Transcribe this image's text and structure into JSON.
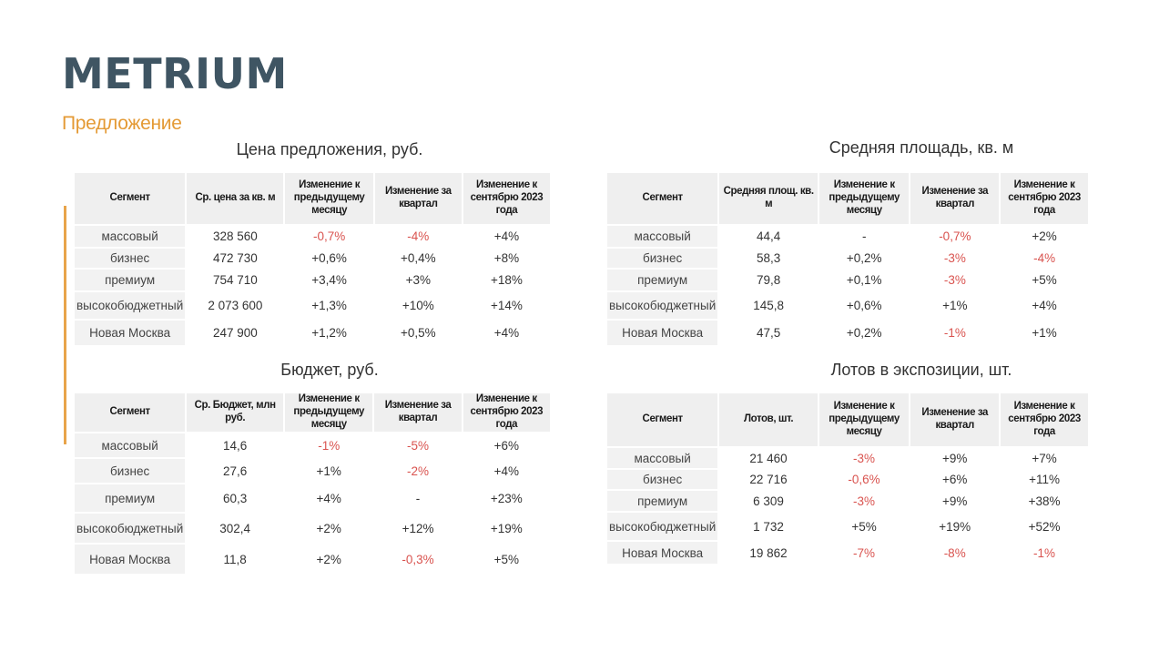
{
  "header": {
    "logo": "METRIUM",
    "subtitle": "Предложение"
  },
  "colors": {
    "logo": "#3f5563",
    "accent": "#e49a35",
    "negative": "#d9534f",
    "header_bg": "#efefef"
  },
  "tables": {
    "price": {
      "title": "Цена предложения, руб.",
      "headers": [
        "Сегмент",
        "Ср. цена  за кв. м",
        "Изменение к предыдущему месяцу",
        "Изменение за квартал",
        "Изменение к сентябрю 2023 года"
      ],
      "rows": [
        [
          "массовый",
          "328 560",
          "-0,7%",
          "-4%",
          "+4%"
        ],
        [
          "бизнес",
          "472 730",
          "+0,6%",
          "+0,4%",
          "+8%"
        ],
        [
          "премиум",
          "754 710",
          "+3,4%",
          "+3%",
          "+18%"
        ],
        [
          "высокобюджетный",
          "2 073 600",
          "+1,3%",
          "+10%",
          "+14%"
        ],
        [
          "Новая Москва",
          "247 900",
          "+1,2%",
          "+0,5%",
          "+4%"
        ]
      ]
    },
    "area": {
      "title": "Средняя площадь, кв. м",
      "headers": [
        "Сегмент",
        "Средняя площ. кв. м",
        "Изменение к предыдущему месяцу",
        "Изменение за квартал",
        "Изменение к сентябрю 2023 года"
      ],
      "rows": [
        [
          "массовый",
          "44,4",
          "-",
          "-0,7%",
          "+2%"
        ],
        [
          "бизнес",
          "58,3",
          "+0,2%",
          "-3%",
          "-4%"
        ],
        [
          "премиум",
          "79,8",
          "+0,1%",
          "-3%",
          "+5%"
        ],
        [
          "высокобюджетный",
          "145,8",
          "+0,6%",
          "+1%",
          "+4%"
        ],
        [
          "Новая Москва",
          "47,5",
          "+0,2%",
          "-1%",
          "+1%"
        ]
      ]
    },
    "budget": {
      "title": "Бюджет, руб.",
      "headers": [
        "Сегмент",
        "Ср.  Бюджет, млн руб.",
        "Изменение к предыдущему месяцу",
        "Изменение за квартал",
        "Изменение к сентябрю 2023 года"
      ],
      "rows": [
        [
          "массовый",
          "14,6",
          "-1%",
          "-5%",
          "+6%"
        ],
        [
          "бизнес",
          "27,6",
          "+1%",
          "-2%",
          "+4%"
        ],
        [
          "премиум",
          "60,3",
          "+4%",
          "-",
          "+23%"
        ],
        [
          "высокобюджетный",
          "302,4",
          "+2%",
          "+12%",
          "+19%"
        ],
        [
          "Новая Москва",
          "11,8",
          "+2%",
          "-0,3%",
          "+5%"
        ]
      ]
    },
    "lots": {
      "title": "Лотов в экспозиции, шт.",
      "headers": [
        "Сегмент",
        "Лотов, шт.",
        "Изменение к предыдущему месяцу",
        "Изменение за квартал",
        "Изменение к сентябрю 2023 года"
      ],
      "rows": [
        [
          "массовый",
          "21 460",
          "-3%",
          "+9%",
          "+7%"
        ],
        [
          "бизнес",
          "22 716",
          "-0,6%",
          "+6%",
          "+11%"
        ],
        [
          "премиум",
          "6 309",
          "-3%",
          "+9%",
          "+38%"
        ],
        [
          "высокобюджетный",
          "1 732",
          "+5%",
          "+19%",
          "+52%"
        ],
        [
          "Новая Москва",
          "19 862",
          "-7%",
          "-8%",
          "-1%"
        ]
      ]
    }
  }
}
